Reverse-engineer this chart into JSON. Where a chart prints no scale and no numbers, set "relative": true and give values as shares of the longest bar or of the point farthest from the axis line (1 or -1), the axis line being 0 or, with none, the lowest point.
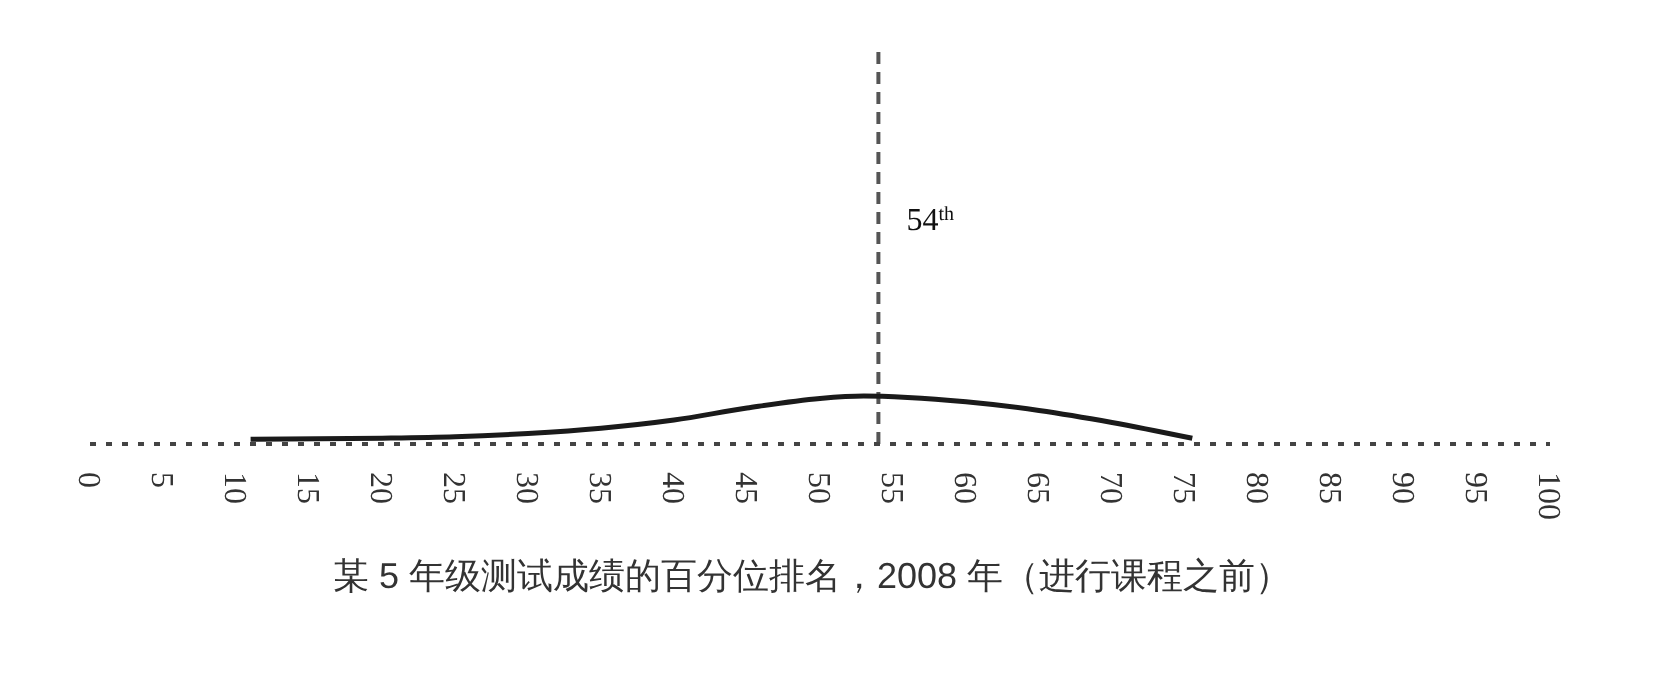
{
  "chart_data": {
    "type": "line",
    "relative": true,
    "annotations": [
      "某 5 年级测试成绩的百分位排名，2008 年（进行课程之前）"
    ],
    "x": [
      11,
      20,
      25,
      30,
      35,
      40,
      45,
      50,
      53,
      56,
      60,
      65,
      70,
      75.5
    ],
    "series": [
      {
        "color": "#1a1a1a",
        "values": [
          0.1,
          0.12,
          0.15,
          0.22,
          0.33,
          0.5,
          0.75,
          0.95,
          1,
          0.97,
          0.88,
          0.7,
          0.45,
          0.12
        ]
      }
    ],
    "xlim": [
      0,
      100
    ],
    "xticks": [
      0,
      5,
      10,
      15,
      20,
      25,
      30,
      35,
      40,
      45,
      50,
      55,
      60,
      65,
      70,
      75,
      80,
      85,
      90,
      95,
      100
    ],
    "ref_lines": [
      {
        "axis": "x",
        "value": 54,
        "label": "54$^{th}$",
        "color": "#555555",
        "line_style": "dashed"
      }
    ],
    "grid": false,
    "legend": false,
    "marker": "none",
    "line_style": "solid"
  }
}
